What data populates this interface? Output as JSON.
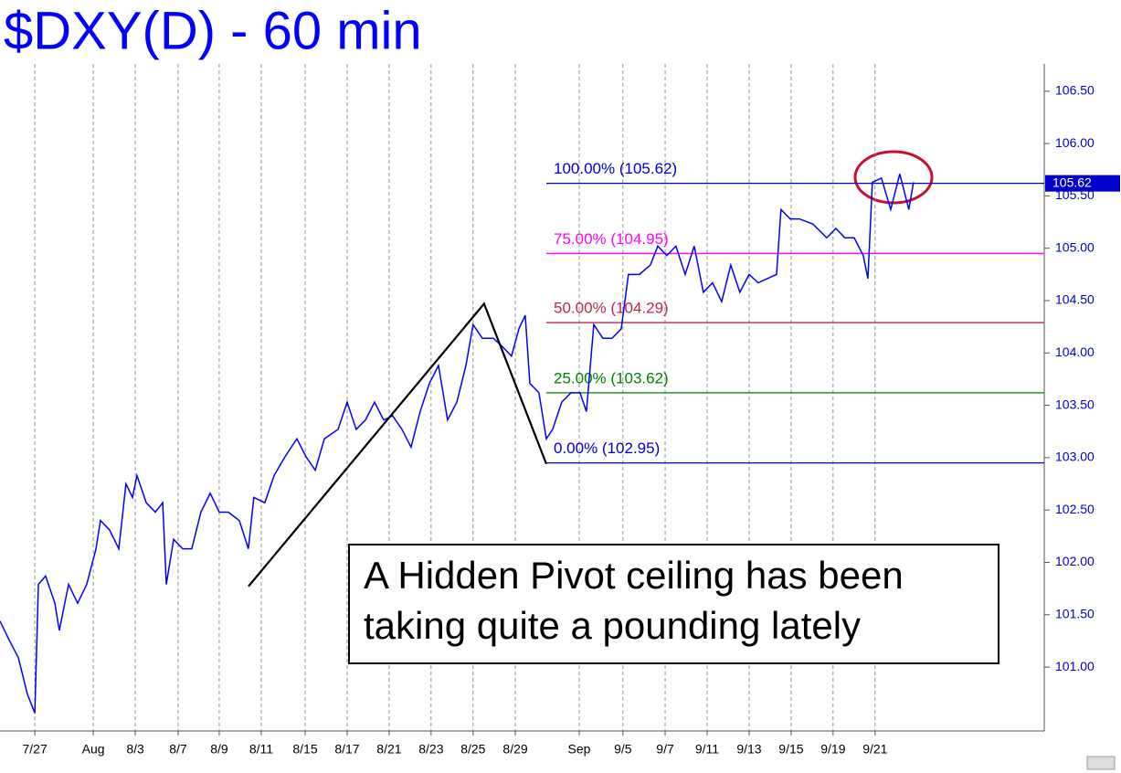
{
  "chart_data": {
    "type": "line",
    "title": "$DXY(D) - 60 min",
    "color": "#0000ff",
    "x": [
      0,
      0.43,
      0.87,
      1.3,
      1.65,
      1.82,
      2.16,
      2.6,
      2.81,
      3.25,
      3.68,
      4.11,
      4.55,
      4.76,
      5.19,
      5.63,
      5.97,
      6.28,
      6.49,
      6.93,
      7.36,
      7.71,
      7.88,
      8.23,
      8.66,
      9.09,
      9.52,
      9.96,
      10.39,
      10.82,
      11.34,
      11.77,
      12.03,
      12.55,
      12.99,
      13.51,
      14.07,
      14.5,
      14.94,
      15.37,
      16.02,
      16.45,
      16.88,
      17.32,
      17.75,
      18.18,
      18.61,
      19.05,
      19.48,
      19.91,
      20.35,
      20.78,
      21.21,
      21.65,
      22.08,
      22.42,
      22.86,
      23.38,
      23.81,
      24.24,
      24.59,
      24.89,
      25.11,
      25.54,
      25.89,
      26.19,
      26.62,
      27.06,
      27.49,
      27.79,
      28.14,
      28.57,
      29.0,
      29.44,
      29.78,
      30.3,
      30.82,
      31.17,
      31.6,
      32.03,
      32.47,
      32.9,
      33.33,
      33.77,
      34.2,
      34.63,
      35.06,
      35.5,
      35.93,
      36.36,
      36.8,
      37.01,
      37.45,
      37.88,
      38.53,
      39.18,
      39.61,
      40.04,
      40.48,
      40.91,
      41.13,
      41.34,
      41.77,
      42.21,
      42.64,
      43.07,
      43.29
    ],
    "values": [
      101.44,
      101.26,
      101.09,
      100.74,
      100.56,
      101.79,
      101.87,
      101.61,
      101.35,
      101.79,
      101.61,
      101.79,
      102.13,
      102.4,
      102.31,
      102.13,
      102.75,
      102.62,
      102.83,
      102.57,
      102.48,
      102.57,
      101.79,
      102.22,
      102.13,
      102.13,
      102.48,
      102.66,
      102.48,
      102.48,
      102.4,
      102.13,
      102.62,
      102.57,
      102.83,
      103.01,
      103.18,
      103.01,
      102.88,
      103.18,
      103.27,
      103.53,
      103.27,
      103.36,
      103.53,
      103.36,
      103.4,
      103.27,
      103.1,
      103.44,
      103.71,
      103.88,
      103.36,
      103.53,
      103.88,
      104.27,
      104.14,
      104.14,
      104.06,
      103.97,
      104.23,
      104.36,
      103.71,
      103.62,
      103.18,
      103.27,
      103.53,
      103.62,
      103.62,
      103.44,
      104.27,
      104.14,
      104.14,
      104.23,
      104.75,
      104.75,
      104.84,
      105.02,
      104.93,
      105.02,
      104.75,
      105.02,
      104.58,
      104.67,
      104.49,
      104.84,
      104.58,
      104.75,
      104.67,
      104.71,
      104.75,
      105.37,
      105.28,
      105.28,
      105.23,
      105.1,
      105.19,
      105.1,
      105.1,
      104.93,
      104.71,
      105.63,
      105.67,
      105.37,
      105.71,
      105.37,
      105.63
    ],
    "xlim": [
      0,
      49.4
    ],
    "xticks": [
      {
        "value": 1.65,
        "label": "7/27"
      },
      {
        "value": 4.42,
        "label": "Aug"
      },
      {
        "value": 6.41,
        "label": "8/3"
      },
      {
        "value": 8.44,
        "label": "8/7"
      },
      {
        "value": 10.39,
        "label": "8/9"
      },
      {
        "value": 12.38,
        "label": "8/11"
      },
      {
        "value": 14.46,
        "label": "8/15"
      },
      {
        "value": 16.45,
        "label": "8/17"
      },
      {
        "value": 18.44,
        "label": "8/21"
      },
      {
        "value": 20.43,
        "label": "8/23"
      },
      {
        "value": 22.42,
        "label": "8/25"
      },
      {
        "value": 24.42,
        "label": "8/29"
      },
      {
        "value": 27.45,
        "label": "Sep"
      },
      {
        "value": 29.52,
        "label": "9/5"
      },
      {
        "value": 31.52,
        "label": "9/7"
      },
      {
        "value": 33.51,
        "label": "9/11"
      },
      {
        "value": 35.5,
        "label": "9/13"
      },
      {
        "value": 37.49,
        "label": "9/15"
      },
      {
        "value": 39.48,
        "label": "9/19"
      },
      {
        "value": 41.47,
        "label": "9/21"
      }
    ],
    "ylim": [
      100.39,
      106.76
    ],
    "yticks": [
      {
        "value": 101,
        "label": "101.00"
      },
      {
        "value": 101.5,
        "label": "101.50"
      },
      {
        "value": 102,
        "label": "102.00"
      },
      {
        "value": 102.5,
        "label": "102.50"
      },
      {
        "value": 103,
        "label": "103.00"
      },
      {
        "value": 103.5,
        "label": "103.50"
      },
      {
        "value": 104,
        "label": "104.00"
      },
      {
        "value": 104.5,
        "label": "104.50"
      },
      {
        "value": 105,
        "label": "105.00"
      },
      {
        "value": 105.5,
        "label": "105.50"
      },
      {
        "value": 106,
        "label": "106.00"
      },
      {
        "value": 106.5,
        "label": "106.50"
      }
    ],
    "last_value": 105.62,
    "levels": [
      {
        "label": "100.00% (105.62)",
        "value": 105.62,
        "color": "#0000cc"
      },
      {
        "label": "75.00% (104.95)",
        "value": 104.95,
        "color": "#ff00ff"
      },
      {
        "label": "50.00% (104.29)",
        "value": 104.29,
        "color": "#c0284a"
      },
      {
        "label": "25.00% (103.62)",
        "value": 103.62,
        "color": "#008000"
      },
      {
        "label": "0.00% (102.95)",
        "value": 102.95,
        "color": "#0000cc"
      }
    ],
    "pattern": {
      "x": [
        11.77,
        22.94,
        25.89
      ],
      "y": [
        101.77,
        104.47,
        102.94
      ],
      "color": "#000000"
    },
    "annotation": [
      "A Hidden Pivot ceiling has been",
      "taking quite a pounding lately"
    ]
  }
}
